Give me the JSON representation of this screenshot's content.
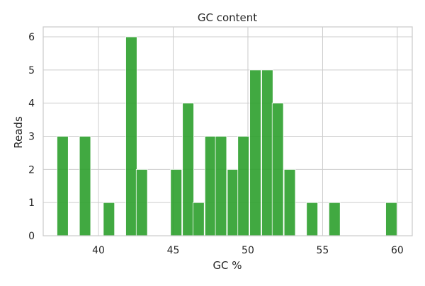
{
  "chart_data": {
    "type": "bar",
    "title": "GC content",
    "xlabel": "GC %",
    "ylabel": "Reads",
    "xlim": [
      36.3,
      61.0
    ],
    "ylim": [
      0,
      6.3
    ],
    "x_ticks": [
      40,
      45,
      50,
      55,
      60
    ],
    "y_ticks": [
      0,
      1,
      2,
      3,
      4,
      5,
      6
    ],
    "grid": true,
    "bar_color": "#2ca02c",
    "bin_width": 0.75,
    "bars": [
      {
        "x": 37.6,
        "value": 3
      },
      {
        "x": 39.1,
        "value": 3
      },
      {
        "x": 40.7,
        "value": 1
      },
      {
        "x": 42.2,
        "value": 6
      },
      {
        "x": 42.9,
        "value": 2
      },
      {
        "x": 45.2,
        "value": 2
      },
      {
        "x": 46.0,
        "value": 4
      },
      {
        "x": 46.7,
        "value": 1
      },
      {
        "x": 47.5,
        "value": 3
      },
      {
        "x": 48.2,
        "value": 3
      },
      {
        "x": 49.0,
        "value": 2
      },
      {
        "x": 49.7,
        "value": 3
      },
      {
        "x": 50.5,
        "value": 5
      },
      {
        "x": 51.3,
        "value": 5
      },
      {
        "x": 52.0,
        "value": 4
      },
      {
        "x": 52.8,
        "value": 2
      },
      {
        "x": 54.3,
        "value": 1
      },
      {
        "x": 55.8,
        "value": 1
      },
      {
        "x": 59.6,
        "value": 1
      }
    ]
  }
}
